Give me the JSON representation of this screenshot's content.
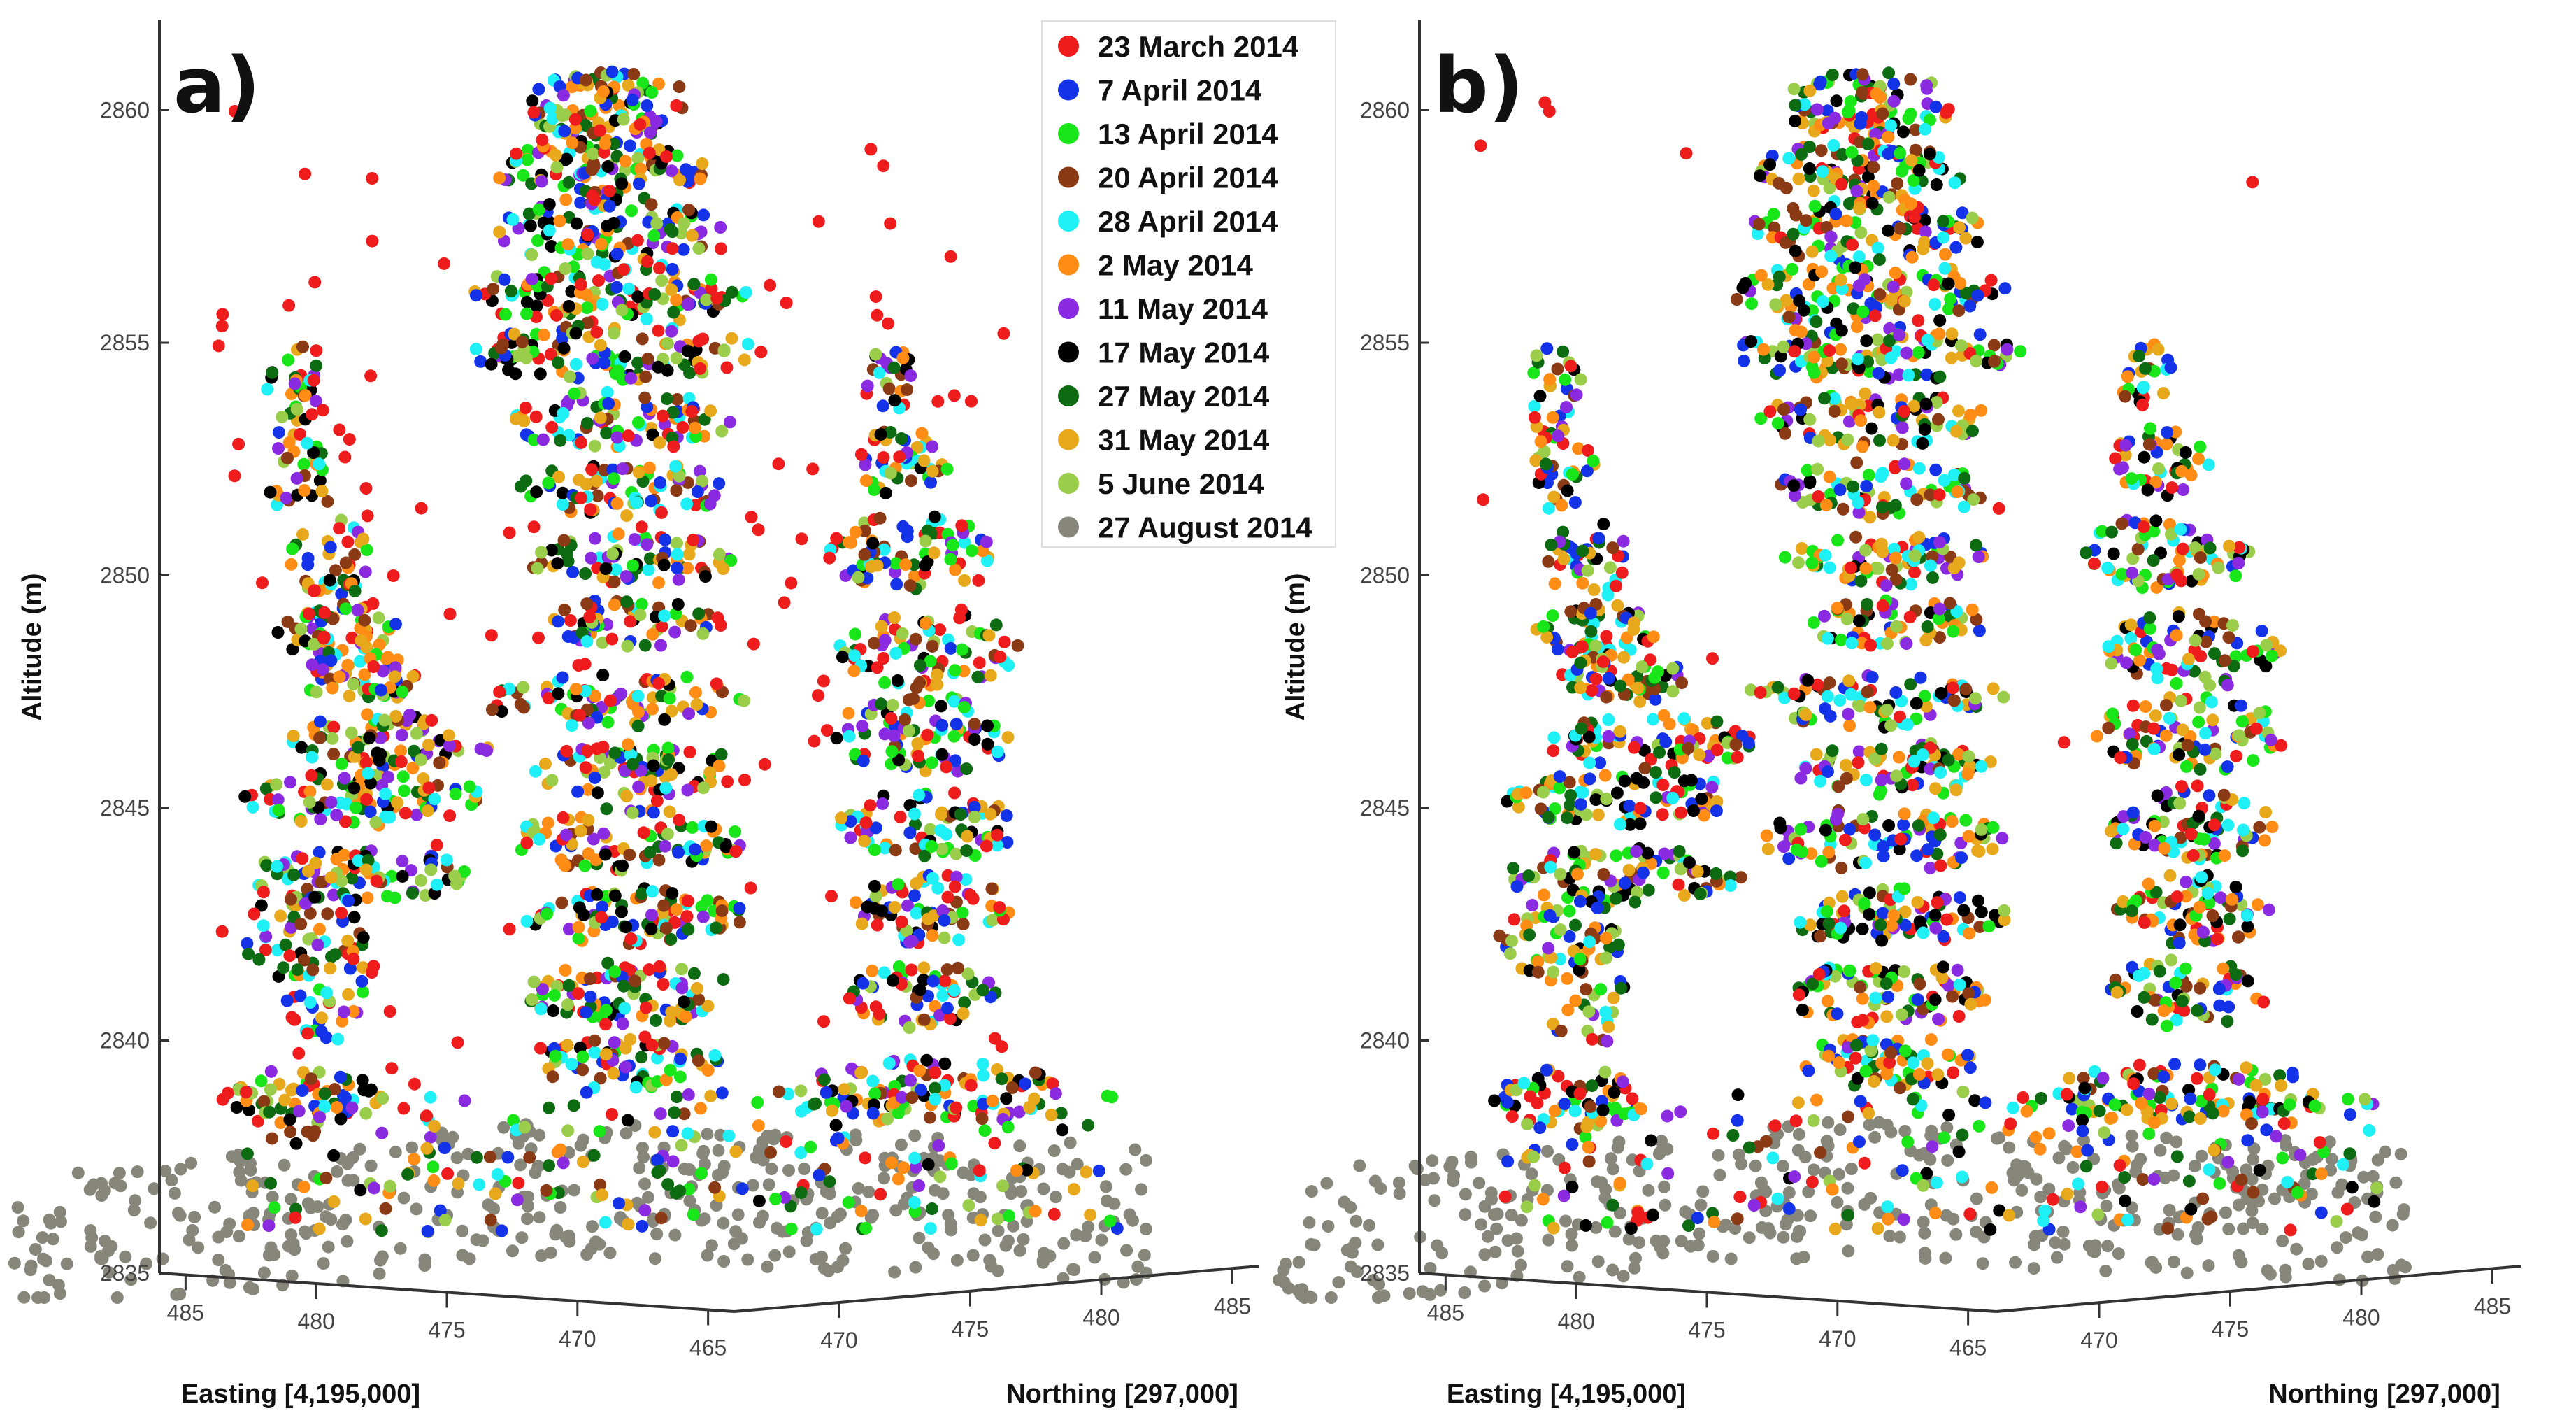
{
  "chart_data": [
    {
      "type": "scatter",
      "panel_label": "a)",
      "zlabel": "Altitude (m)",
      "xlabel": "Easting [4,195,000]",
      "ylabel": "Northing [297,000]",
      "zlim": [
        2835,
        2861
      ],
      "z_ticks": [
        "2835",
        "2840",
        "2845",
        "2850",
        "2855",
        "2860"
      ],
      "easting_ticks": [
        "485",
        "480",
        "475",
        "470",
        "465"
      ],
      "northing_ticks": [
        "470",
        "475",
        "480",
        "485"
      ],
      "legend_placement": "top-right",
      "series": [
        {
          "name": "23 March 2014",
          "color": "#ee1c1c"
        },
        {
          "name": "7 April 2014",
          "color": "#1433e8"
        },
        {
          "name": "13 April 2014",
          "color": "#19e619"
        },
        {
          "name": "20 April 2014",
          "color": "#8b3a16"
        },
        {
          "name": "28 April 2014",
          "color": "#1ef0f5"
        },
        {
          "name": "2 May 2014",
          "color": "#ff8c14"
        },
        {
          "name": "11 May 2014",
          "color": "#8a2be2"
        },
        {
          "name": "17 May 2014",
          "color": "#000000"
        },
        {
          "name": "27 May 2014",
          "color": "#0d6b12"
        },
        {
          "name": "31 May 2014",
          "color": "#e8a81c"
        },
        {
          "name": "5 June 2014",
          "color": "#9acd4a"
        },
        {
          "name": "27 August 2014",
          "color": "#87867a"
        }
      ]
    },
    {
      "type": "scatter",
      "panel_label": "b)",
      "zlabel": "Altitude (m)",
      "xlabel": "Easting [4,195,000]",
      "ylabel": "Northing [297,000]",
      "zlim": [
        2835,
        2861
      ],
      "z_ticks": [
        "2835",
        "2840",
        "2845",
        "2850",
        "2855",
        "2860"
      ],
      "easting_ticks": [
        "485",
        "480",
        "475",
        "470",
        "465"
      ],
      "northing_ticks": [
        "470",
        "475",
        "480",
        "485"
      ]
    }
  ]
}
